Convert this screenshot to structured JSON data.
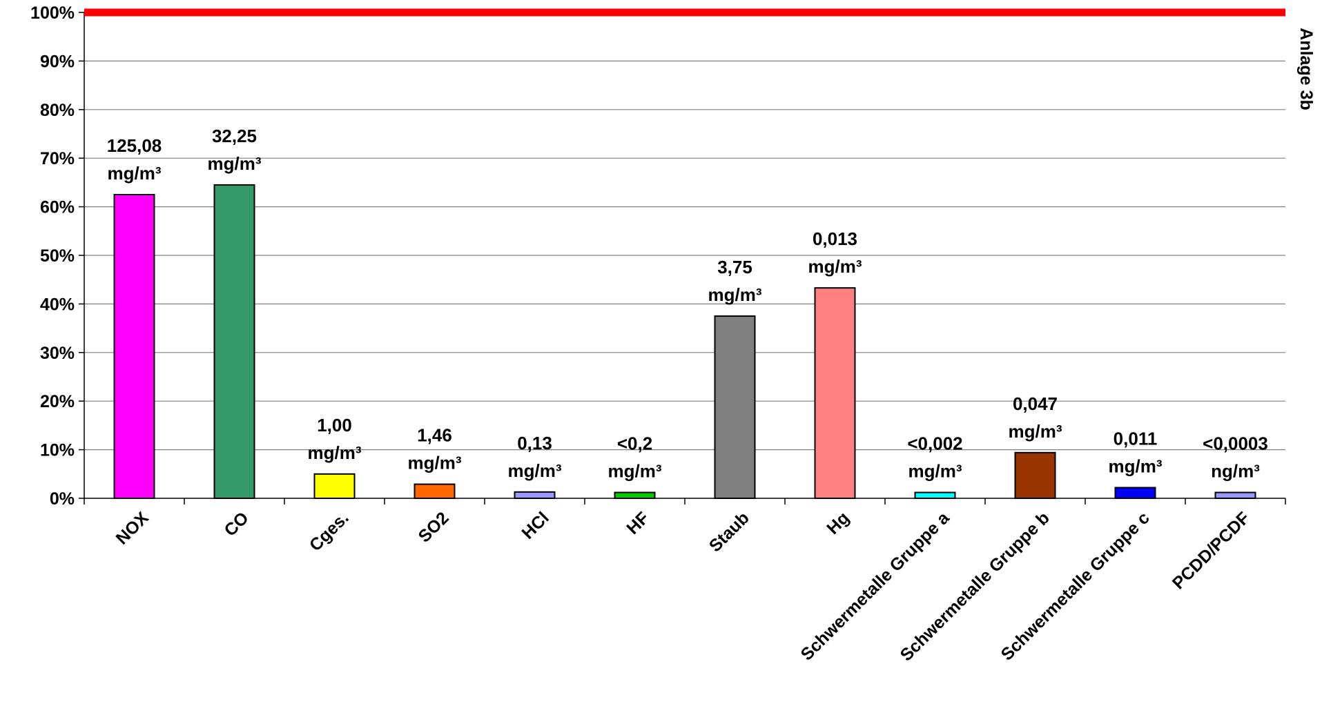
{
  "chart_data": {
    "type": "bar",
    "categories": [
      "NOX",
      "CO",
      "Cges.",
      "SO2",
      "HCl",
      "HF",
      "Staub",
      "Hg",
      "Schwermetalle Gruppe a",
      "Schwermetalle Gruppe b",
      "Schwermetalle Gruppe c",
      "PCDD/PCDF"
    ],
    "values": [
      62.5,
      64.5,
      5.0,
      2.9,
      1.3,
      1.2,
      37.5,
      43.3,
      1.2,
      9.4,
      2.2,
      1.2
    ],
    "data_labels": [
      [
        "125,08",
        "mg/m³"
      ],
      [
        "32,25",
        "mg/m³"
      ],
      [
        "1,00",
        "mg/m³"
      ],
      [
        "1,46",
        "mg/m³"
      ],
      [
        "0,13",
        "mg/m³"
      ],
      [
        "<0,2",
        "mg/m³"
      ],
      [
        "3,75",
        "mg/m³"
      ],
      [
        "0,013",
        "mg/m³"
      ],
      [
        "<0,002",
        "mg/m³"
      ],
      [
        "0,047",
        "mg/m³"
      ],
      [
        "0,011",
        "mg/m³"
      ],
      [
        "<0,0003",
        "ng/m³"
      ]
    ],
    "colors": [
      "#FF00FF",
      "#339966",
      "#FFFF00",
      "#FF6600",
      "#9999FF",
      "#00CC00",
      "#808080",
      "#FF8080",
      "#00FFFF",
      "#993300",
      "#0000FF",
      "#9999FF"
    ],
    "ylim": [
      0,
      100
    ],
    "yticks": [
      "0%",
      "10%",
      "20%",
      "30%",
      "40%",
      "50%",
      "60%",
      "70%",
      "80%",
      "90%",
      "100%"
    ],
    "limit_line": {
      "value": 100,
      "color": "#FF0000"
    },
    "grid": true,
    "legend": "none",
    "side_label": "Anlage 3b",
    "title": "",
    "xlabel": "",
    "ylabel": ""
  }
}
